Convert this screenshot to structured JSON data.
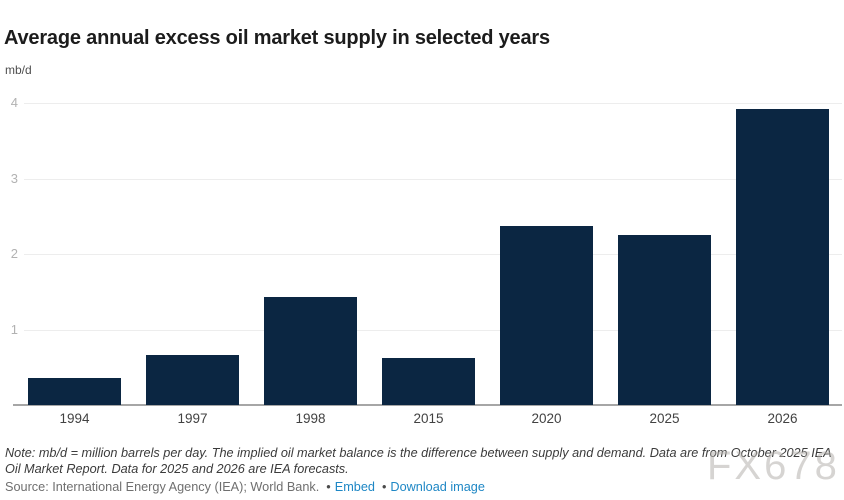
{
  "header": {
    "title": "Average annual excess oil market supply in selected years",
    "units": "mb/d"
  },
  "chart_data": {
    "type": "bar",
    "categories": [
      "1994",
      "1997",
      "1998",
      "2015",
      "2020",
      "2025",
      "2026"
    ],
    "values": [
      0.36,
      0.66,
      1.43,
      0.62,
      2.38,
      2.25,
      3.93
    ],
    "title": "Average annual excess oil market supply in selected years",
    "xlabel": "",
    "ylabel": "mb/d",
    "ylim": [
      0,
      4
    ],
    "yticks": [
      1,
      2,
      3,
      4
    ],
    "grid": true,
    "legend": "none",
    "bar_color": "#0b2642"
  },
  "footer": {
    "note": "Note: mb/d = million barrels per day. The implied oil market balance is the difference between supply and demand. Data are from October 2025 IEA Oil Market Report. Data for 2025 and 2026 are IEA forecasts.",
    "source_text": "Source: International Energy Agency (IEA); World Bank.",
    "separator": "•",
    "embed_label": "Embed",
    "download_label": "Download image",
    "link_color": "#1e87c5"
  },
  "watermark": "FX678"
}
